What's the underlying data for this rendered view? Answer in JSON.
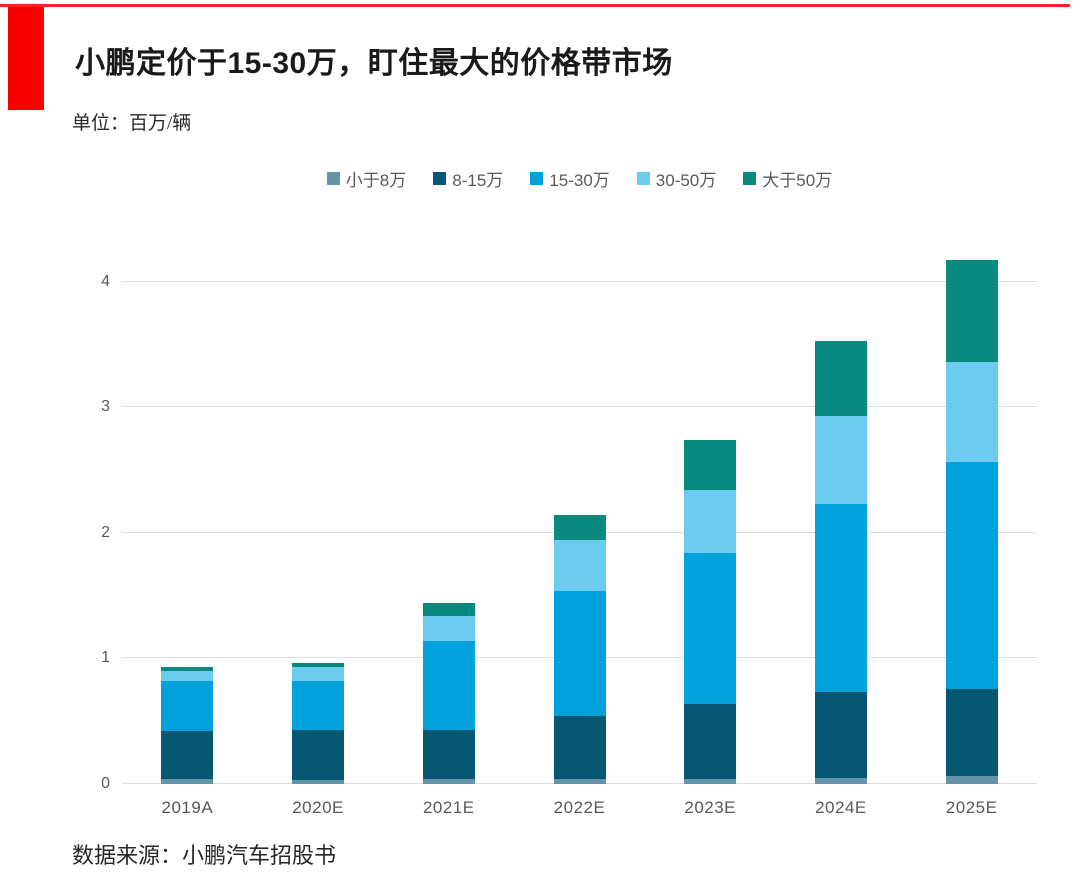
{
  "page": {
    "title": "小鹏定价于15-30万，盯住最大的价格带市场",
    "unit_label": "单位：百万/辆",
    "source_note": "数据来源：小鹏汽车招股书"
  },
  "accent": {
    "top_line_color": "#f62424",
    "block_color": "#fa0000"
  },
  "legend": {
    "items": [
      {
        "label": "小于8万",
        "color": "#6593a8"
      },
      {
        "label": "8-15万",
        "color": "#065872"
      },
      {
        "label": "15-30万",
        "color": "#00a1dc"
      },
      {
        "label": "30-50万",
        "color": "#6dcbf0"
      },
      {
        "label": "大于50万",
        "color": "#088b7e"
      }
    ]
  },
  "chart_data": {
    "type": "bar",
    "stacked": true,
    "title": "小鹏定价于15-30万，盯住最大的价格带市场",
    "xlabel": "",
    "ylabel": "百万/辆",
    "categories": [
      "2019A",
      "2020E",
      "2021E",
      "2022E",
      "2023E",
      "2024E",
      "2025E"
    ],
    "series": [
      {
        "name": "小于8万",
        "color": "#6593a8",
        "values": [
          0.04,
          0.03,
          0.04,
          0.04,
          0.04,
          0.05,
          0.06
        ]
      },
      {
        "name": "8-15万",
        "color": "#065872",
        "values": [
          0.38,
          0.4,
          0.39,
          0.5,
          0.6,
          0.68,
          0.7
        ]
      },
      {
        "name": "15-30万",
        "color": "#00a1dc",
        "values": [
          0.4,
          0.39,
          0.71,
          1.0,
          1.2,
          1.5,
          1.8
        ]
      },
      {
        "name": "30-50万",
        "color": "#6dcbf0",
        "values": [
          0.08,
          0.11,
          0.2,
          0.4,
          0.5,
          0.7,
          0.8
        ]
      },
      {
        "name": "大于50万",
        "color": "#088b7e",
        "values": [
          0.03,
          0.03,
          0.1,
          0.2,
          0.4,
          0.6,
          0.81
        ]
      }
    ],
    "totals": [
      0.93,
      0.96,
      1.44,
      2.14,
      2.74,
      3.53,
      4.17
    ],
    "ylim": [
      0,
      4
    ],
    "yticks": [
      0,
      1,
      2,
      3,
      4
    ],
    "grid": true,
    "legend_position": "top"
  }
}
